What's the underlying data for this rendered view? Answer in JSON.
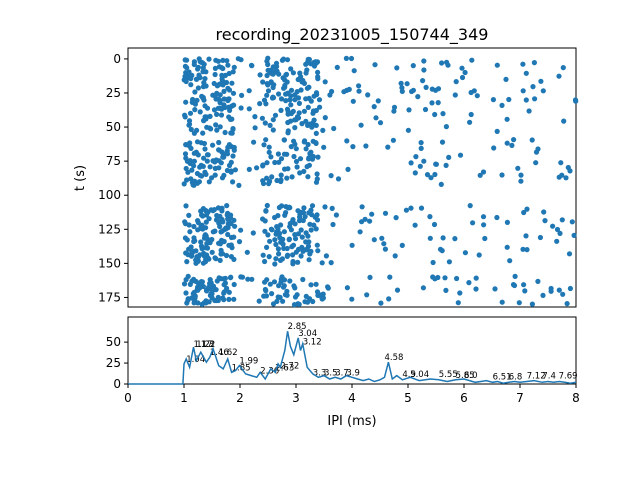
{
  "chart_data": [
    {
      "type": "scatter",
      "title": "recording_20231005_150744_349",
      "xlabel": "",
      "ylabel": "t (s)",
      "xlim": [
        0,
        8
      ],
      "ylim": [
        182,
        -8
      ],
      "y_inverted": true,
      "yticks": [
        0,
        25,
        50,
        75,
        100,
        125,
        150,
        175
      ],
      "ytick_labels": [
        "0",
        "25",
        "50",
        "75",
        "100",
        "125",
        "150",
        "175"
      ],
      "grid": false,
      "color": "#1f77b4",
      "generator": {
        "segments": [
          {
            "t0": 0,
            "t1": 30,
            "step": 1.2
          },
          {
            "t0": 30,
            "t1": 55,
            "step": 1.5
          },
          {
            "t0": 60,
            "t1": 92,
            "step": 1.6
          },
          {
            "t0": 108,
            "t1": 150,
            "step": 1.2
          },
          {
            "t0": 160,
            "t1": 180,
            "step": 1.1
          }
        ],
        "x_range": [
          1.0,
          8.0
        ],
        "dense_bands": [
          [
            1.0,
            1.9
          ],
          [
            2.4,
            3.4
          ]
        ]
      }
    },
    {
      "type": "line",
      "xlabel": "IPI (ms)",
      "ylabel": "",
      "xlim": [
        0,
        8
      ],
      "ylim": [
        0,
        80
      ],
      "xticks": [
        0,
        1,
        2,
        3,
        4,
        5,
        6,
        7,
        8
      ],
      "xtick_labels": [
        "0",
        "1",
        "2",
        "3",
        "4",
        "5",
        "6",
        "7",
        "8"
      ],
      "yticks": [
        0,
        25,
        50
      ],
      "ytick_labels": [
        "0",
        "25",
        "50"
      ],
      "grid": false,
      "color": "#1f77b4",
      "series": [
        {
          "x": [
            0,
            0.5,
            0.98,
            1.0,
            1.04,
            1.1,
            1.17,
            1.22,
            1.3,
            1.4,
            1.46,
            1.52,
            1.62,
            1.7,
            1.78,
            1.85,
            1.92,
            1.99,
            2.1,
            2.2,
            2.3,
            2.36,
            2.45,
            2.55,
            2.63,
            2.68,
            2.72,
            2.8,
            2.85,
            2.9,
            2.96,
            3.04,
            3.08,
            3.12,
            3.2,
            3.3,
            3.4,
            3.5,
            3.6,
            3.7,
            3.8,
            3.9,
            4.0,
            4.1,
            4.2,
            4.3,
            4.4,
            4.5,
            4.58,
            4.65,
            4.72,
            4.8,
            4.9,
            5.04,
            5.2,
            5.4,
            5.55,
            5.7,
            5.85,
            6.0,
            6.1,
            6.2,
            6.3,
            6.4,
            6.51,
            6.6,
            6.7,
            6.8,
            6.9,
            7.0,
            7.12,
            7.25,
            7.4,
            7.5,
            7.6,
            7.7,
            7.8,
            7.9,
            8.0
          ],
          "y": [
            0,
            0,
            0,
            24,
            30,
            20,
            44,
            28,
            38,
            26,
            32,
            42,
            22,
            18,
            30,
            14,
            16,
            22,
            12,
            10,
            8,
            14,
            6,
            18,
            14,
            24,
            20,
            40,
            63,
            45,
            35,
            55,
            40,
            48,
            20,
            12,
            8,
            10,
            6,
            8,
            6,
            10,
            8,
            6,
            4,
            6,
            3,
            5,
            8,
            26,
            6,
            10,
            5,
            8,
            4,
            6,
            5,
            3,
            5,
            6,
            4,
            2,
            3,
            4,
            2,
            3,
            1,
            2,
            3,
            2,
            3,
            4,
            2,
            3,
            2,
            3,
            2,
            1,
            2
          ]
        }
      ],
      "peak_labels": [
        {
          "x": 1.04,
          "y": 24,
          "label": "1.04"
        },
        {
          "x": 1.17,
          "y": 42,
          "label": "1.17"
        },
        {
          "x": 1.22,
          "y": 42,
          "label": "1.22"
        },
        {
          "x": 1.3,
          "y": 42,
          "label": "1.3"
        },
        {
          "x": 1.46,
          "y": 32,
          "label": "1.46"
        },
        {
          "x": 1.62,
          "y": 32,
          "label": "1.62"
        },
        {
          "x": 1.85,
          "y": 14,
          "label": "1.85"
        },
        {
          "x": 1.99,
          "y": 22,
          "label": "1.99"
        },
        {
          "x": 2.36,
          "y": 10,
          "label": "2.36"
        },
        {
          "x": 2.63,
          "y": 14,
          "label": "2.63"
        },
        {
          "x": 2.72,
          "y": 16,
          "label": "2.72"
        },
        {
          "x": 2.85,
          "y": 63,
          "label": "2.85"
        },
        {
          "x": 3.04,
          "y": 55,
          "label": "3.04"
        },
        {
          "x": 3.12,
          "y": 45,
          "label": "3.12"
        },
        {
          "x": 3.3,
          "y": 8,
          "label": "3.3"
        },
        {
          "x": 3.5,
          "y": 8,
          "label": "3.5"
        },
        {
          "x": 3.7,
          "y": 8,
          "label": "3.7"
        },
        {
          "x": 3.9,
          "y": 8,
          "label": "3.9"
        },
        {
          "x": 4.58,
          "y": 26,
          "label": "4.58"
        },
        {
          "x": 4.9,
          "y": 6,
          "label": "4.9"
        },
        {
          "x": 5.04,
          "y": 6,
          "label": "5.04"
        },
        {
          "x": 5.55,
          "y": 6,
          "label": "5.55"
        },
        {
          "x": 5.85,
          "y": 5,
          "label": "5.85"
        },
        {
          "x": 6.0,
          "y": 5,
          "label": "6.0"
        },
        {
          "x": 6.51,
          "y": 3,
          "label": "6.51"
        },
        {
          "x": 6.8,
          "y": 3,
          "label": "6.8"
        },
        {
          "x": 7.12,
          "y": 4,
          "label": "7.12"
        },
        {
          "x": 7.4,
          "y": 4,
          "label": "7.4"
        },
        {
          "x": 7.69,
          "y": 4,
          "label": "7.69"
        }
      ]
    }
  ]
}
